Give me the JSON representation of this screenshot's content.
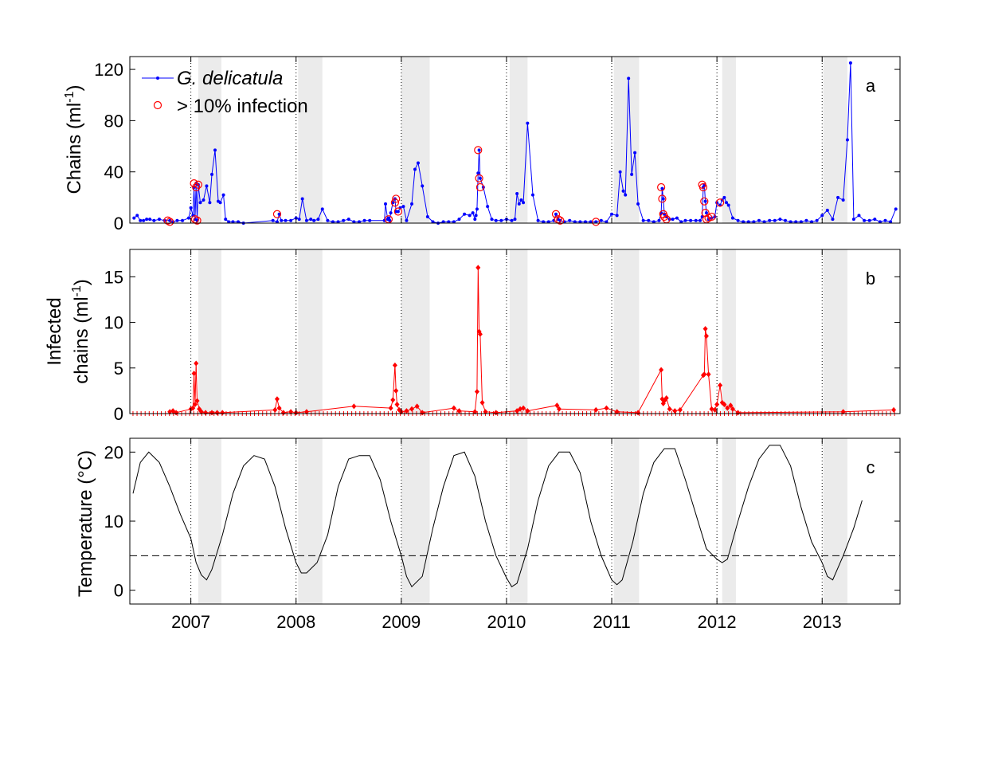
{
  "chart_data": [
    {
      "id": "a",
      "type": "line",
      "panel_letter": "a",
      "ylabel_main": "Chains (ml",
      "ylabel_sup": "-1",
      "ylabel_end": ")",
      "ylim": [
        0,
        130
      ],
      "yticks": [
        0,
        40,
        80,
        120
      ],
      "series": [
        {
          "name": "G. delicatula",
          "color": "#0000ff",
          "marker": "dot",
          "x": [
            2006.46,
            2006.49,
            2006.52,
            2006.55,
            2006.58,
            2006.61,
            2006.65,
            2006.7,
            2006.75,
            2006.8,
            2006.83,
            2006.87,
            2006.92,
            2006.98,
            2007.0,
            2007.02,
            2007.03,
            2007.04,
            2007.05,
            2007.06,
            2007.07,
            2007.09,
            2007.12,
            2007.15,
            2007.18,
            2007.2,
            2007.23,
            2007.26,
            2007.28,
            2007.31,
            2007.33,
            2007.36,
            2007.4,
            2007.45,
            2007.5,
            2007.78,
            2007.82,
            2007.84,
            2007.86,
            2007.9,
            2007.95,
            2008.0,
            2008.03,
            2008.06,
            2008.1,
            2008.14,
            2008.17,
            2008.21,
            2008.25,
            2008.3,
            2008.35,
            2008.4,
            2008.45,
            2008.5,
            2008.55,
            2008.6,
            2008.65,
            2008.7,
            2008.84,
            2008.85,
            2008.87,
            2008.88,
            2008.89,
            2008.9,
            2008.92,
            2008.94,
            2008.95,
            2008.97,
            2008.99,
            2009.02,
            2009.05,
            2009.1,
            2009.13,
            2009.16,
            2009.2,
            2009.25,
            2009.3,
            2009.35,
            2009.4,
            2009.45,
            2009.5,
            2009.55,
            2009.6,
            2009.65,
            2009.68,
            2009.7,
            2009.71,
            2009.72,
            2009.73,
            2009.74,
            2009.75,
            2009.78,
            2009.82,
            2009.86,
            2009.9,
            2009.95,
            2010.0,
            2010.05,
            2010.08,
            2010.1,
            2010.12,
            2010.14,
            2010.16,
            2010.2,
            2010.25,
            2010.3,
            2010.35,
            2010.4,
            2010.45,
            2010.47,
            2010.49,
            2010.51,
            2010.55,
            2010.6,
            2010.65,
            2010.7,
            2010.75,
            2010.8,
            2010.85,
            2010.9,
            2010.95,
            2011.0,
            2011.05,
            2011.08,
            2011.11,
            2011.13,
            2011.16,
            2011.19,
            2011.22,
            2011.25,
            2011.3,
            2011.35,
            2011.4,
            2011.45,
            2011.47,
            2011.48,
            2011.49,
            2011.5,
            2011.52,
            2011.55,
            2011.58,
            2011.62,
            2011.66,
            2011.7,
            2011.75,
            2011.8,
            2011.84,
            2011.86,
            2011.87,
            2011.88,
            2011.89,
            2011.9,
            2011.92,
            2011.95,
            2011.98,
            2012.0,
            2012.03,
            2012.05,
            2012.07,
            2012.09,
            2012.11,
            2012.15,
            2012.2,
            2012.25,
            2012.3,
            2012.35,
            2012.4,
            2012.45,
            2012.5,
            2012.55,
            2012.6,
            2012.65,
            2012.7,
            2012.75,
            2012.8,
            2012.85,
            2012.9,
            2012.95,
            2013.0,
            2013.05,
            2013.1,
            2013.15,
            2013.2,
            2013.24,
            2013.27,
            2013.3,
            2013.35,
            2013.4,
            2013.45,
            2013.5,
            2013.55,
            2013.6,
            2013.65,
            2013.7
          ],
          "y": [
            4,
            6,
            2,
            2,
            3,
            3,
            2,
            3,
            2,
            2,
            1,
            2,
            2,
            4,
            12,
            6,
            28,
            3,
            31,
            2,
            30,
            16,
            18,
            29,
            16,
            38,
            57,
            17,
            16,
            22,
            3,
            1,
            1,
            1,
            0,
            2,
            1,
            7,
            2,
            2,
            2,
            4,
            3,
            19,
            2,
            3,
            2,
            3,
            11,
            2,
            1,
            1,
            2,
            3,
            1,
            1,
            2,
            2,
            2,
            15,
            3,
            4,
            2,
            8,
            16,
            19,
            9,
            9,
            12,
            13,
            2,
            15,
            42,
            47,
            29,
            5,
            1,
            0,
            1,
            1,
            1,
            3,
            7,
            6,
            8,
            3,
            6,
            11,
            39,
            57,
            35,
            28,
            13,
            3,
            2,
            2,
            3,
            2,
            3,
            23,
            15,
            18,
            16,
            78,
            22,
            2,
            1,
            1,
            2,
            7,
            3,
            2,
            1,
            2,
            1,
            1,
            1,
            1,
            1,
            2,
            1,
            7,
            6,
            40,
            25,
            22,
            113,
            38,
            55,
            15,
            2,
            2,
            1,
            2,
            8,
            27,
            19,
            7,
            5,
            3,
            3,
            4,
            1,
            2,
            2,
            2,
            2,
            5,
            28,
            30,
            17,
            8,
            3,
            4,
            5,
            16,
            14,
            18,
            20,
            16,
            14,
            4,
            2,
            1,
            1,
            1,
            2,
            1,
            2,
            2,
            3,
            2,
            1,
            1,
            1,
            2,
            1,
            2,
            6,
            10,
            3,
            20,
            18,
            65,
            125,
            3,
            6,
            2,
            2,
            3,
            1,
            2,
            1,
            11
          ]
        },
        {
          "name": "> 10% infection",
          "color": "#ff0000",
          "marker": "circle",
          "x": [
            2006.78,
            2006.8,
            2007.03,
            2007.04,
            2007.05,
            2007.06,
            2007.07,
            2007.82,
            2008.88,
            2008.94,
            2008.95,
            2008.97,
            2009.73,
            2009.74,
            2009.75,
            2010.47,
            2010.49,
            2010.51,
            2010.85,
            2011.47,
            2011.48,
            2011.49,
            2011.5,
            2011.52,
            2011.86,
            2011.87,
            2011.88,
            2011.89,
            2011.9,
            2011.92,
            2011.95,
            2012.03
          ],
          "y": [
            2,
            1,
            31,
            3,
            28,
            2,
            30,
            7,
            3,
            16,
            19,
            9,
            57,
            35,
            28,
            7,
            3,
            2,
            1,
            28,
            19,
            7,
            5,
            3,
            30,
            28,
            17,
            8,
            3,
            4,
            5,
            16
          ]
        }
      ]
    },
    {
      "id": "b",
      "type": "line",
      "panel_letter": "b",
      "ylabel_line1": "Infected",
      "ylabel_line2_main": "chains (ml",
      "ylabel_sup": "-1",
      "ylabel_end": ")",
      "ylim": [
        0,
        18
      ],
      "yticks": [
        0,
        5,
        10,
        15
      ],
      "series": [
        {
          "name": "Infected chains",
          "color": "#ff0000",
          "marker": "diamond",
          "x": [
            2006.8,
            2006.83,
            2006.86,
            2007.0,
            2007.02,
            2007.03,
            2007.04,
            2007.05,
            2007.06,
            2007.08,
            2007.1,
            2007.14,
            2007.2,
            2007.25,
            2007.3,
            2007.8,
            2007.82,
            2007.84,
            2007.88,
            2007.95,
            2008.0,
            2008.1,
            2008.55,
            2008.9,
            2008.92,
            2008.94,
            2008.95,
            2008.96,
            2008.98,
            2009.0,
            2009.05,
            2009.1,
            2009.15,
            2009.2,
            2009.5,
            2009.55,
            2009.7,
            2009.72,
            2009.73,
            2009.74,
            2009.75,
            2009.77,
            2009.8,
            2009.9,
            2010.1,
            2010.13,
            2010.16,
            2010.2,
            2010.48,
            2010.5,
            2010.85,
            2010.95,
            2011.05,
            2011.25,
            2011.47,
            2011.48,
            2011.49,
            2011.5,
            2011.52,
            2011.55,
            2011.6,
            2011.65,
            2011.87,
            2011.88,
            2011.89,
            2011.9,
            2011.92,
            2011.95,
            2011.98,
            2012.0,
            2012.03,
            2012.05,
            2012.07,
            2012.1,
            2012.13,
            2012.15,
            2012.2,
            2013.2,
            2013.68
          ],
          "y": [
            0.2,
            0.3,
            0.1,
            0.5,
            0.6,
            4.4,
            1.0,
            5.5,
            1.4,
            0.5,
            0.2,
            0.1,
            0.1,
            0.1,
            0.1,
            0.4,
            1.6,
            0.6,
            0.1,
            0.2,
            0.1,
            0.2,
            0.8,
            0.6,
            1.5,
            5.3,
            2.5,
            1.0,
            0.4,
            0.2,
            0.3,
            0.5,
            0.8,
            0.1,
            0.6,
            0.3,
            0.2,
            2.4,
            16.0,
            9.0,
            8.7,
            1.2,
            0.2,
            0.1,
            0.3,
            0.5,
            0.6,
            0.3,
            0.9,
            0.5,
            0.4,
            0.6,
            0.2,
            0.1,
            4.8,
            1.6,
            1.1,
            1.4,
            1.7,
            0.5,
            0.3,
            0.4,
            4.2,
            4.3,
            9.3,
            8.5,
            4.3,
            0.5,
            0.4,
            1.0,
            3.1,
            1.2,
            1.0,
            0.6,
            0.9,
            0.5,
            0.1,
            0.2,
            0.4
          ]
        }
      ]
    },
    {
      "id": "c",
      "type": "line",
      "panel_letter": "c",
      "ylabel_main": "Temperature (",
      "ylabel_deg": "°C",
      "ylabel_end": ")",
      "ylim": [
        -2,
        22
      ],
      "yticks": [
        0,
        10,
        20
      ],
      "threshold": 5,
      "series": [
        {
          "name": "Temperature",
          "color": "#000000",
          "x": [
            2006.45,
            2006.52,
            2006.6,
            2006.7,
            2006.8,
            2006.9,
            2007.0,
            2007.05,
            2007.1,
            2007.15,
            2007.2,
            2007.3,
            2007.4,
            2007.5,
            2007.6,
            2007.7,
            2007.8,
            2007.9,
            2008.0,
            2008.05,
            2008.1,
            2008.2,
            2008.3,
            2008.4,
            2008.5,
            2008.6,
            2008.7,
            2008.8,
            2008.9,
            2009.0,
            2009.05,
            2009.1,
            2009.2,
            2009.3,
            2009.4,
            2009.5,
            2009.6,
            2009.7,
            2009.8,
            2009.9,
            2010.0,
            2010.05,
            2010.1,
            2010.2,
            2010.3,
            2010.4,
            2010.5,
            2010.6,
            2010.7,
            2010.8,
            2010.9,
            2011.0,
            2011.05,
            2011.1,
            2011.2,
            2011.3,
            2011.4,
            2011.5,
            2011.6,
            2011.7,
            2011.8,
            2011.9,
            2012.0,
            2012.05,
            2012.1,
            2012.2,
            2012.3,
            2012.4,
            2012.5,
            2012.6,
            2012.7,
            2012.8,
            2012.9,
            2013.0,
            2013.05,
            2013.1,
            2013.2,
            2013.3,
            2013.38
          ],
          "y": [
            14,
            18.5,
            20,
            18.5,
            15,
            11,
            7.5,
            4,
            2.2,
            1.5,
            3,
            8,
            14,
            18,
            19.5,
            19,
            15,
            9,
            4,
            2.5,
            2.5,
            4,
            8,
            15,
            19,
            19.5,
            19.5,
            16,
            10,
            5,
            2,
            0.5,
            2,
            9,
            15,
            19.5,
            20,
            16.5,
            10,
            5,
            1.8,
            0.5,
            1,
            6,
            13,
            18,
            20,
            20,
            17,
            10,
            5,
            1.5,
            0.8,
            1.5,
            7,
            14,
            18.5,
            20.5,
            20.5,
            16,
            11,
            6,
            4.5,
            4,
            4.5,
            10,
            15,
            19,
            21,
            21,
            18,
            12,
            7,
            4,
            2,
            1.5,
            5,
            9,
            13
          ]
        }
      ]
    }
  ],
  "x_axis": {
    "xlim": [
      2006.42,
      2013.74
    ],
    "ticks": [
      {
        "value": 2007,
        "label": "2007"
      },
      {
        "value": 2008,
        "label": "2008"
      },
      {
        "value": 2009,
        "label": "2009"
      },
      {
        "value": 2010,
        "label": "2010"
      },
      {
        "value": 2011,
        "label": "2011"
      },
      {
        "value": 2012,
        "label": "2012"
      },
      {
        "value": 2013,
        "label": "2013"
      }
    ]
  },
  "shaded_periods": [
    [
      2007.07,
      2007.29
    ],
    [
      2008.02,
      2008.25
    ],
    [
      2009.0,
      2009.27
    ],
    [
      2010.03,
      2010.2
    ],
    [
      2011.02,
      2011.26
    ],
    [
      2012.05,
      2012.18
    ],
    [
      2013.01,
      2013.24
    ]
  ],
  "legend": {
    "entries": [
      {
        "label_italic": "G. delicatula",
        "color": "#0000ff",
        "marker": "line-dot"
      },
      {
        "label": "> 10% infection",
        "color": "#ff0000",
        "marker": "circle"
      }
    ],
    "placement": "top-left"
  },
  "colors": {
    "shade": "#ebebeb",
    "frame": "#000000",
    "blue": "#0000ff",
    "red": "#ff0000"
  }
}
